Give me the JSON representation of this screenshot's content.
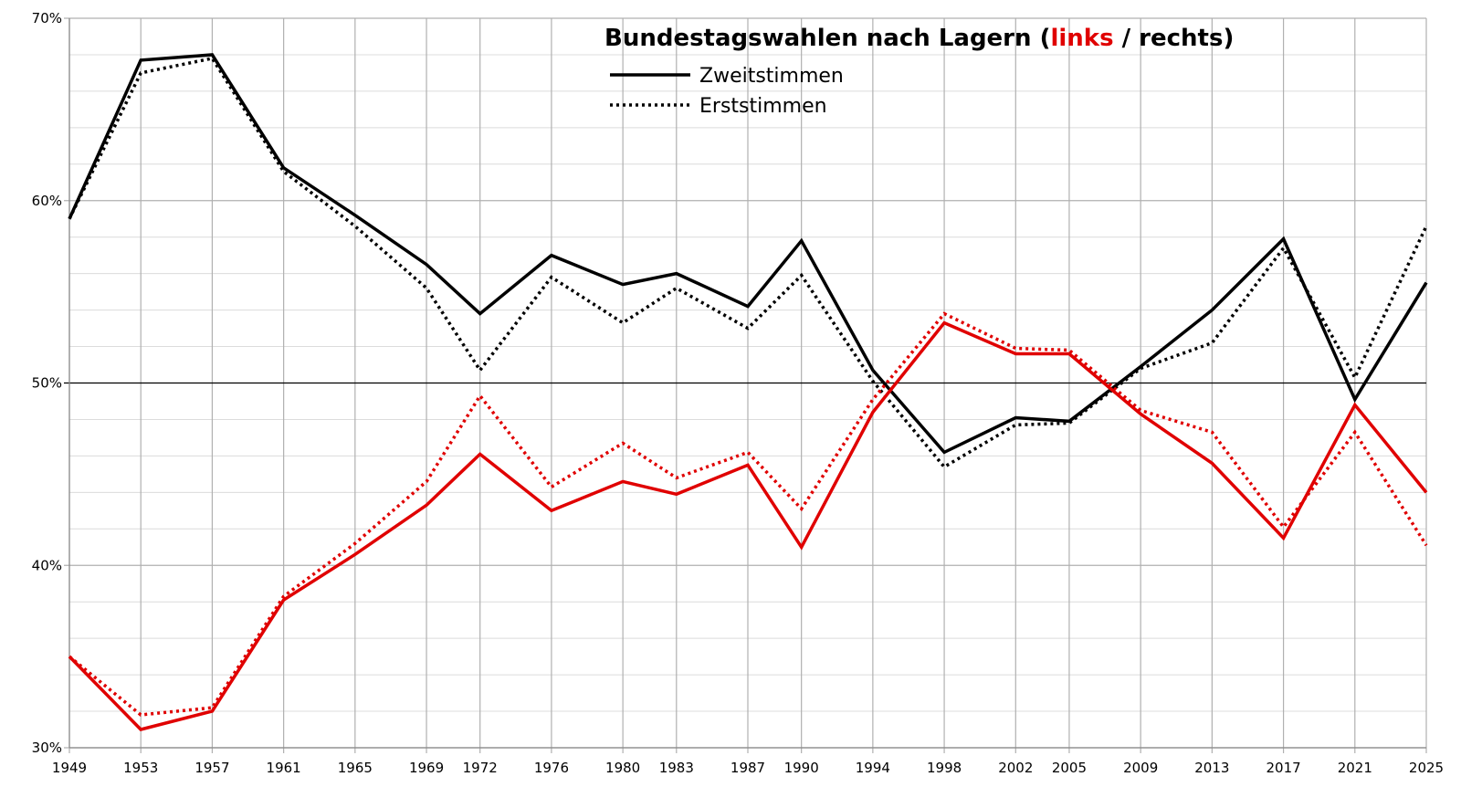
{
  "chart_data": {
    "type": "line",
    "title": {
      "prefix": "Bundestagswahlen nach Lagern (",
      "left_word": "links",
      "separator": " / ",
      "right_word": "rechts",
      "suffix": ")"
    },
    "x": [
      1949,
      1953,
      1957,
      1961,
      1965,
      1969,
      1972,
      1976,
      1980,
      1983,
      1987,
      1990,
      1994,
      1998,
      2002,
      2005,
      2009,
      2013,
      2017,
      2021,
      2025
    ],
    "ylim": [
      30,
      70
    ],
    "yticks": [
      30,
      40,
      50,
      60,
      70
    ],
    "ytick_labels": [
      "30%",
      "40%",
      "50%",
      "60%",
      "70%"
    ],
    "minor_gridlines_every": 2,
    "reference_line": 50,
    "legend": [
      {
        "label": "Zweitstimmen",
        "style": "solid"
      },
      {
        "label": "Erststimmen",
        "style": "dotted"
      }
    ],
    "colors": {
      "links": "#e00000",
      "rechts": "#000000",
      "grid": "#b0b0b0",
      "minor_grid": "#dcdcdc"
    },
    "series": [
      {
        "group": "rechts",
        "vote": "Zweitstimmen",
        "style": "solid",
        "color": "#000000",
        "values": [
          59.0,
          67.7,
          68.0,
          61.8,
          59.2,
          56.5,
          53.8,
          57.0,
          55.4,
          56.0,
          54.2,
          57.8,
          50.7,
          46.2,
          48.1,
          47.9,
          50.9,
          54.0,
          57.9,
          49.1,
          55.5
        ]
      },
      {
        "group": "rechts",
        "vote": "Erststimmen",
        "style": "dotted",
        "color": "#000000",
        "values": [
          59.0,
          67.0,
          67.8,
          61.6,
          58.6,
          55.2,
          50.7,
          55.8,
          53.3,
          55.2,
          53.0,
          55.9,
          50.1,
          45.4,
          47.7,
          47.8,
          50.8,
          52.2,
          57.4,
          50.3,
          58.6
        ]
      },
      {
        "group": "links",
        "vote": "Zweitstimmen",
        "style": "solid",
        "color": "#e00000",
        "values": [
          35.0,
          31.0,
          32.0,
          38.1,
          40.6,
          43.3,
          46.1,
          43.0,
          44.6,
          43.9,
          45.5,
          41.0,
          48.4,
          53.3,
          51.6,
          51.6,
          48.3,
          45.6,
          41.5,
          48.8,
          44.0
        ]
      },
      {
        "group": "links",
        "vote": "Erststimmen",
        "style": "dotted",
        "color": "#e00000",
        "values": [
          35.0,
          31.8,
          32.2,
          38.3,
          41.2,
          44.6,
          49.3,
          44.3,
          46.7,
          44.8,
          46.2,
          43.1,
          49.1,
          53.8,
          51.9,
          51.8,
          48.5,
          47.3,
          42.1,
          47.3,
          41.1
        ]
      }
    ]
  }
}
